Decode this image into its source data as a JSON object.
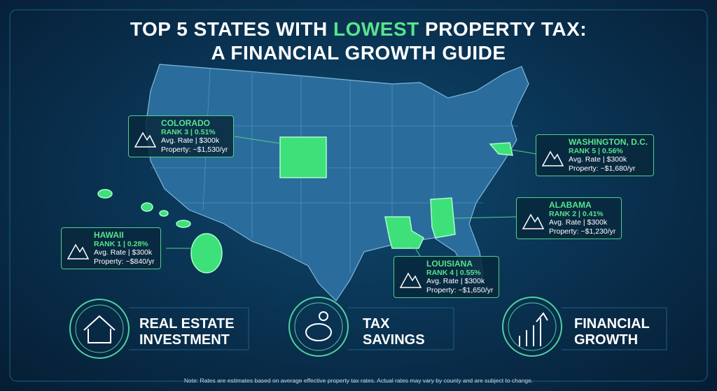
{
  "header": {
    "title_line1": [
      "TOP 5 STATES WITH",
      "LOWEST",
      "PROPERTY TAX:"
    ],
    "title_line2": "A FINANCIAL GROWTH GUIDE"
  },
  "callouts": [
    {
      "state": "COLORADO",
      "rank": "RANK 3 | 0.51%",
      "rate": "Avg. Rate | $300k",
      "property": "Property: ~$1,530/yr"
    },
    {
      "state": "WASHINGTON, D.C.",
      "rank": "RANK 5 | 0.56%",
      "rate": "Avg. Rate | $300k",
      "property": "Property: ~$1,680/yr"
    },
    {
      "state": "ALABAMA",
      "rank": "RANK 2 | 0.41%",
      "rate": "Avg. Rate | $300k",
      "property": "Property: ~$1,230/yr"
    },
    {
      "state": "LOUISIANA",
      "rank": "RANK 4 | 0.55%",
      "rate": "Avg. Rate | $300k",
      "property": "Property: ~$1,650/yr"
    },
    {
      "state": "HAWAII",
      "rank": "RANK 1 | 0.28%",
      "rate": "Avg. Rate | $300k",
      "property": "Property: ~$840/yr"
    }
  ],
  "features": [
    {
      "lines": [
        "REAL ESTATE",
        "INVESTMENT"
      ]
    },
    {
      "lines": [
        "TAX",
        "SAVINGS"
      ]
    },
    {
      "lines": [
        "FINANCIAL",
        "GROWTH"
      ]
    }
  ],
  "note": "Note: Rates are estimates based on average effective property tax rates. Actual rates may vary by county and are subject to change."
}
